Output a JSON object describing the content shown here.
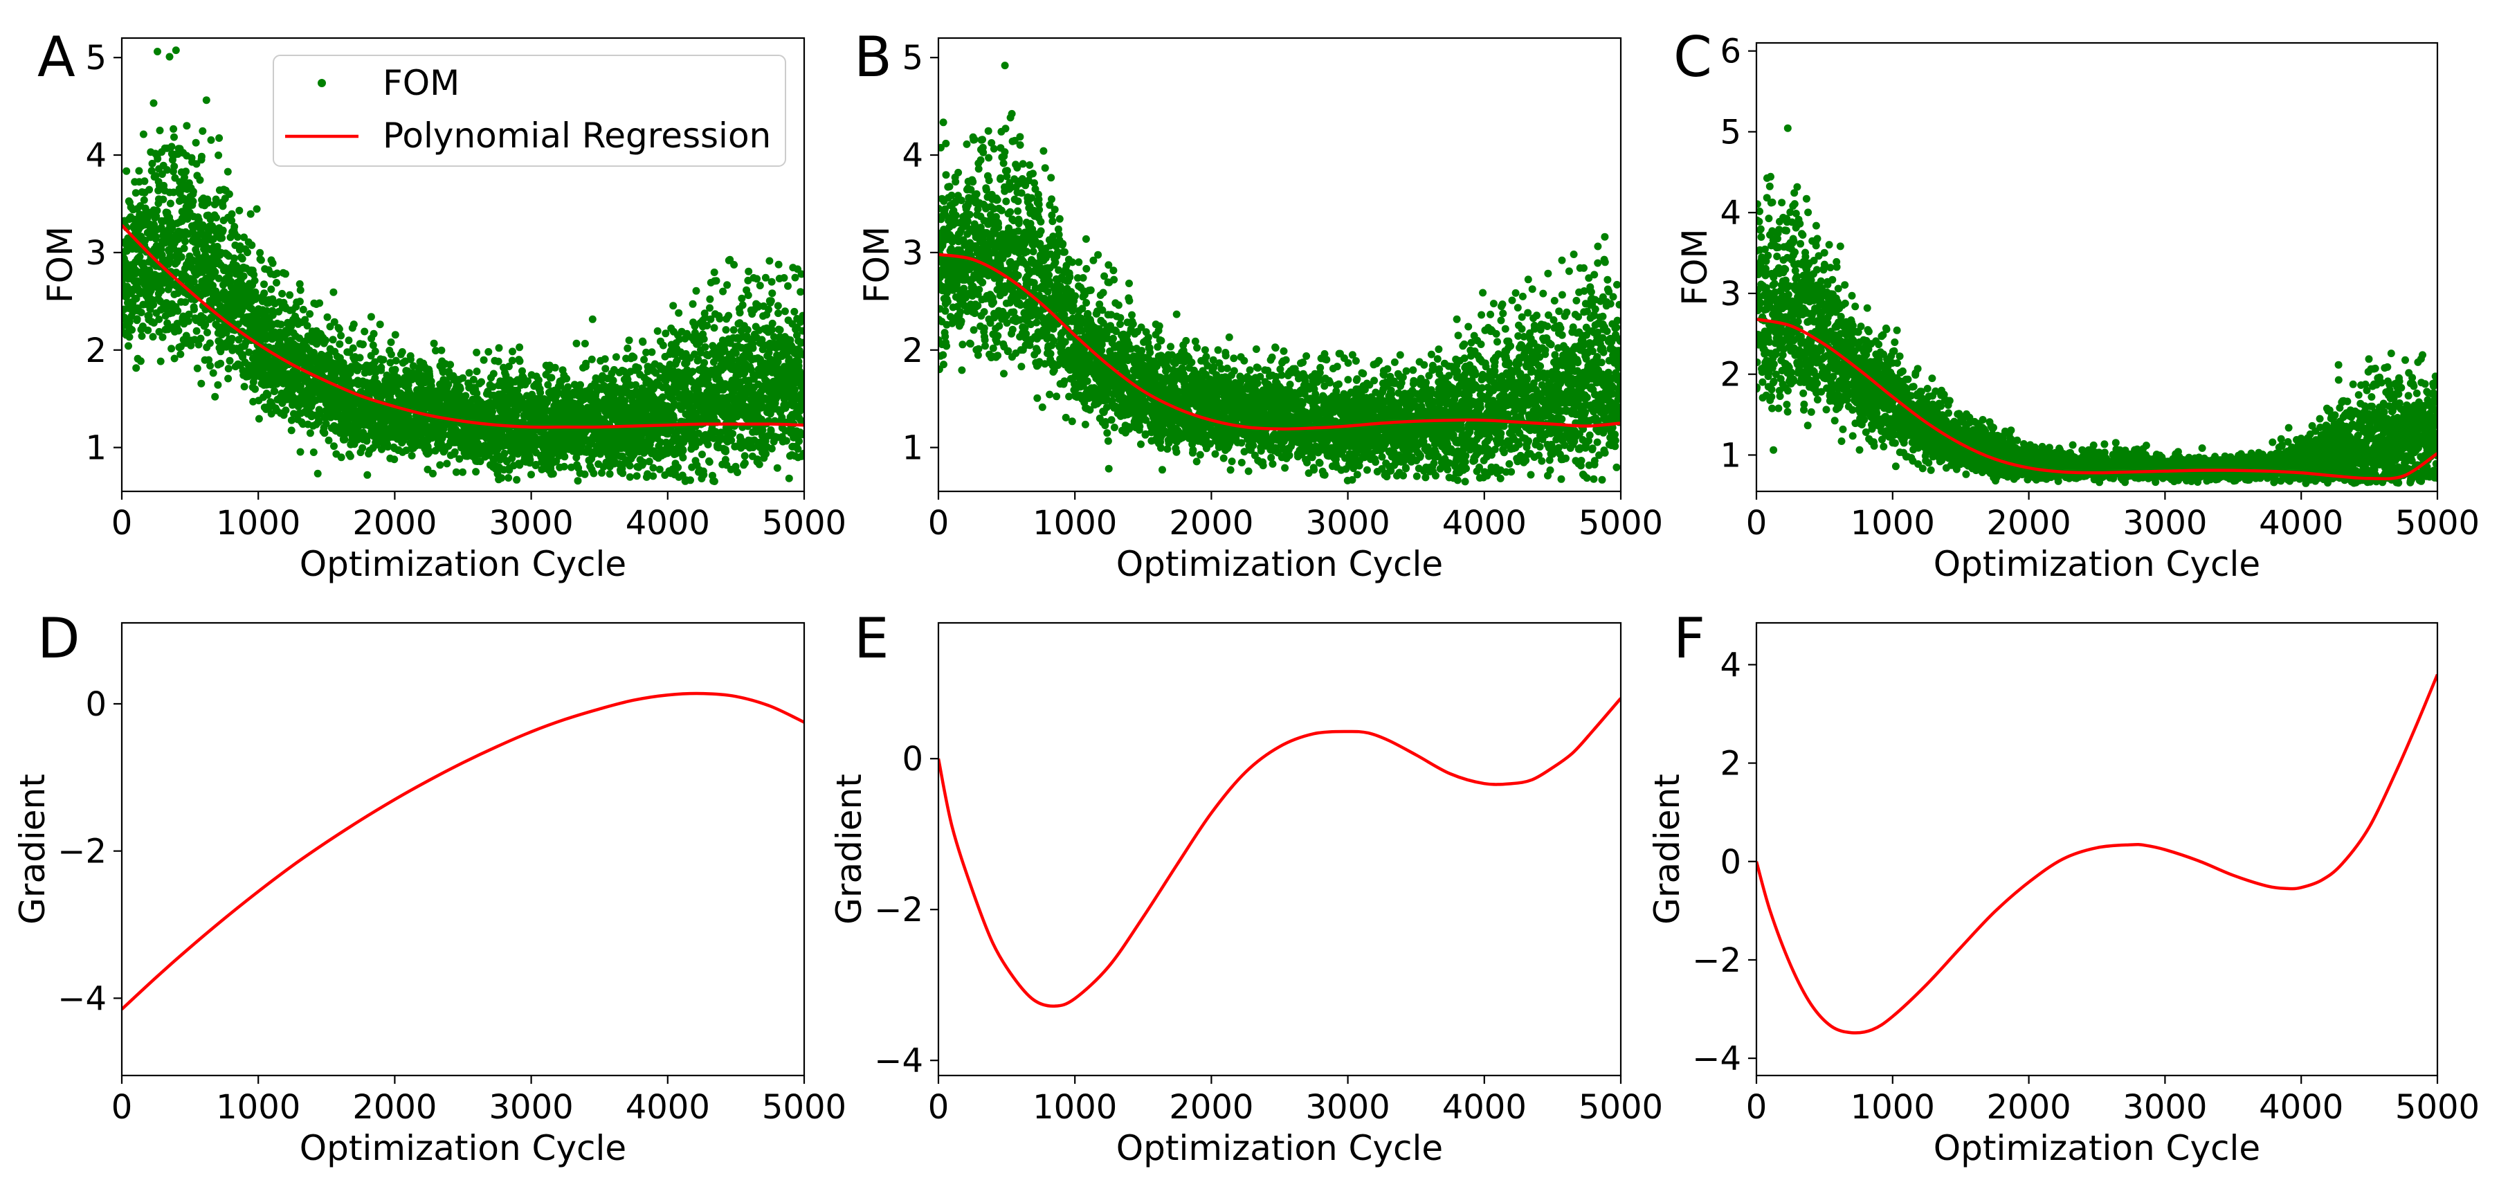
{
  "chart_data": [
    {
      "panel": "A",
      "type": "scatter",
      "xlabel": "Optimization Cycle",
      "ylabel": "FOM",
      "xlim": [
        0,
        5000
      ],
      "ylim": [
        0.55,
        5.2
      ],
      "xticks": [
        0,
        1000,
        2000,
        3000,
        4000,
        5000
      ],
      "yticks": [
        1,
        2,
        3,
        4,
        5
      ],
      "legend": {
        "location": "top-right",
        "entries": [
          "FOM",
          "Polynomial Regression"
        ]
      },
      "scatter_trend": {
        "x": [
          0,
          250,
          500,
          750,
          1000,
          1250,
          1500,
          1750,
          2000,
          2250,
          2500,
          2750,
          3000,
          3250,
          3500,
          3750,
          4000,
          4250,
          4500,
          4750,
          5000
        ],
        "y": [
          2.7,
          2.75,
          2.8,
          2.45,
          2.0,
          1.7,
          1.5,
          1.38,
          1.3,
          1.25,
          1.2,
          1.15,
          1.13,
          1.12,
          1.12,
          1.15,
          1.25,
          1.35,
          1.45,
          1.5,
          1.55
        ],
        "spread": [
          0.55,
          0.6,
          0.75,
          0.6,
          0.5,
          0.4,
          0.35,
          0.32,
          0.3,
          0.3,
          0.3,
          0.3,
          0.3,
          0.3,
          0.32,
          0.38,
          0.45,
          0.5,
          0.55,
          0.55,
          0.55
        ]
      },
      "point_count": 5000,
      "series": [
        {
          "name": "Polynomial Regression",
          "type": "line",
          "x": [
            0,
            250,
            500,
            750,
            1000,
            1250,
            1500,
            1750,
            2000,
            2250,
            2500,
            2750,
            3000,
            3250,
            3500,
            3750,
            4000,
            4250,
            4500,
            4750,
            5000
          ],
          "y": [
            3.28,
            2.92,
            2.6,
            2.31,
            2.06,
            1.85,
            1.68,
            1.53,
            1.42,
            1.33,
            1.27,
            1.23,
            1.21,
            1.21,
            1.21,
            1.22,
            1.23,
            1.24,
            1.24,
            1.24,
            1.23
          ]
        }
      ]
    },
    {
      "panel": "B",
      "type": "scatter",
      "xlabel": "Optimization Cycle",
      "ylabel": "FOM",
      "xlim": [
        0,
        5000
      ],
      "ylim": [
        0.55,
        5.2
      ],
      "xticks": [
        0,
        1000,
        2000,
        3000,
        4000,
        5000
      ],
      "yticks": [
        1,
        2,
        3,
        4,
        5
      ],
      "scatter_trend": {
        "x": [
          0,
          250,
          500,
          750,
          1000,
          1250,
          1500,
          1750,
          2000,
          2250,
          2500,
          2750,
          3000,
          3250,
          3500,
          3750,
          4000,
          4250,
          4500,
          4750,
          5000
        ],
        "y": [
          2.7,
          2.75,
          2.8,
          2.45,
          2.0,
          1.7,
          1.5,
          1.38,
          1.3,
          1.25,
          1.2,
          1.15,
          1.13,
          1.12,
          1.12,
          1.15,
          1.25,
          1.35,
          1.45,
          1.5,
          1.55
        ],
        "spread": [
          0.55,
          0.6,
          0.75,
          0.6,
          0.5,
          0.4,
          0.35,
          0.32,
          0.3,
          0.3,
          0.3,
          0.3,
          0.3,
          0.3,
          0.32,
          0.38,
          0.45,
          0.5,
          0.55,
          0.55,
          0.55
        ]
      },
      "point_count": 5000,
      "series": [
        {
          "name": "Polynomial Regression",
          "type": "line",
          "x": [
            0,
            250,
            500,
            750,
            1000,
            1250,
            1500,
            1750,
            2000,
            2250,
            2500,
            2750,
            3000,
            3250,
            3500,
            3750,
            4000,
            4250,
            4500,
            4750,
            5000
          ],
          "y": [
            2.98,
            2.93,
            2.75,
            2.48,
            2.15,
            1.84,
            1.58,
            1.4,
            1.28,
            1.21,
            1.19,
            1.2,
            1.22,
            1.25,
            1.27,
            1.28,
            1.28,
            1.26,
            1.24,
            1.22,
            1.25
          ]
        }
      ]
    },
    {
      "panel": "C",
      "type": "scatter",
      "xlabel": "Optimization Cycle",
      "ylabel": "FOM",
      "xlim": [
        0,
        5000
      ],
      "ylim": [
        0.55,
        6.1
      ],
      "xticks": [
        0,
        1000,
        2000,
        3000,
        4000,
        5000
      ],
      "yticks": [
        1,
        2,
        3,
        4,
        5,
        6
      ],
      "scatter_trend": {
        "x": [
          0,
          250,
          500,
          750,
          1000,
          1250,
          1500,
          1750,
          2000,
          2250,
          2500,
          2750,
          3000,
          3250,
          3500,
          3750,
          4000,
          4250,
          4500,
          4750,
          5000
        ],
        "y": [
          2.6,
          2.6,
          2.3,
          1.8,
          1.5,
          1.25,
          1.05,
          0.95,
          0.85,
          0.82,
          0.82,
          0.82,
          0.8,
          0.8,
          0.8,
          0.82,
          0.85,
          0.92,
          1.0,
          1.05,
          1.1
        ],
        "spread": [
          0.75,
          0.8,
          0.6,
          0.45,
          0.35,
          0.25,
          0.2,
          0.18,
          0.12,
          0.1,
          0.1,
          0.1,
          0.08,
          0.08,
          0.08,
          0.1,
          0.15,
          0.35,
          0.45,
          0.45,
          0.45
        ]
      },
      "point_count": 5000,
      "series": [
        {
          "name": "Polynomial Regression",
          "type": "line",
          "x": [
            0,
            250,
            500,
            750,
            1000,
            1250,
            1500,
            1750,
            2000,
            2250,
            2500,
            2750,
            3000,
            3250,
            3500,
            3750,
            4000,
            4250,
            4500,
            4750,
            5000
          ],
          "y": [
            2.68,
            2.6,
            2.37,
            2.06,
            1.72,
            1.4,
            1.14,
            0.95,
            0.84,
            0.79,
            0.78,
            0.79,
            0.8,
            0.81,
            0.81,
            0.8,
            0.78,
            0.74,
            0.71,
            0.74,
            1.02
          ]
        }
      ]
    },
    {
      "panel": "D",
      "type": "line",
      "xlabel": "Optimization Cycle",
      "ylabel": "Gradient",
      "xlim": [
        0,
        5000
      ],
      "ylim": [
        -5.05,
        1.1
      ],
      "xticks": [
        0,
        1000,
        2000,
        3000,
        4000,
        5000
      ],
      "yticks": [
        -4,
        -2,
        0
      ],
      "yticklabels": [
        "−4",
        "−2",
        "0"
      ],
      "series": [
        {
          "type": "line",
          "x": [
            0,
            250,
            500,
            750,
            1000,
            1250,
            1500,
            1750,
            2000,
            2250,
            2500,
            2750,
            3000,
            3250,
            3500,
            3750,
            4000,
            4250,
            4500,
            4750,
            5000
          ],
          "y": [
            -4.15,
            -3.72,
            -3.31,
            -2.92,
            -2.55,
            -2.2,
            -1.88,
            -1.58,
            -1.3,
            -1.04,
            -0.8,
            -0.58,
            -0.38,
            -0.21,
            -0.07,
            0.05,
            0.12,
            0.14,
            0.1,
            -0.03,
            -0.25
          ]
        }
      ]
    },
    {
      "panel": "E",
      "type": "line",
      "xlabel": "Optimization Cycle",
      "ylabel": "Gradient",
      "xlim": [
        0,
        5000
      ],
      "ylim": [
        -4.2,
        1.8
      ],
      "xticks": [
        0,
        1000,
        2000,
        3000,
        4000,
        5000
      ],
      "yticks": [
        -4,
        -2,
        0
      ],
      "yticklabels": [
        "−4",
        "−2",
        "0"
      ],
      "series": [
        {
          "type": "line",
          "x": [
            0,
            100,
            250,
            400,
            550,
            700,
            850,
            1000,
            1250,
            1500,
            1750,
            2000,
            2250,
            2500,
            2750,
            3000,
            3150,
            3300,
            3500,
            3750,
            4000,
            4200,
            4350,
            4500,
            4650,
            4800,
            5000
          ],
          "y": [
            0.0,
            -0.9,
            -1.75,
            -2.45,
            -2.9,
            -3.2,
            -3.28,
            -3.18,
            -2.75,
            -2.1,
            -1.4,
            -0.72,
            -0.18,
            0.16,
            0.33,
            0.36,
            0.34,
            0.24,
            0.05,
            -0.2,
            -0.33,
            -0.33,
            -0.28,
            -0.12,
            0.08,
            0.38,
            0.8
          ]
        }
      ]
    },
    {
      "panel": "F",
      "type": "line",
      "xlabel": "Optimization Cycle",
      "ylabel": "Gradient",
      "xlim": [
        0,
        5000
      ],
      "ylim": [
        -4.35,
        4.85
      ],
      "xticks": [
        0,
        1000,
        2000,
        3000,
        4000,
        5000
      ],
      "yticks": [
        -4,
        -2,
        0,
        2,
        4
      ],
      "yticklabels": [
        "−4",
        "−2",
        "0",
        "2",
        "4"
      ],
      "series": [
        {
          "type": "line",
          "x": [
            0,
            100,
            250,
            400,
            550,
            700,
            850,
            1000,
            1250,
            1500,
            1750,
            2000,
            2250,
            2500,
            2750,
            2850,
            3000,
            3250,
            3500,
            3750,
            3900,
            4000,
            4150,
            4300,
            4500,
            4700,
            4850,
            5000
          ],
          "y": [
            0.0,
            -1.0,
            -2.1,
            -2.9,
            -3.35,
            -3.48,
            -3.42,
            -3.15,
            -2.5,
            -1.75,
            -1.02,
            -0.42,
            0.05,
            0.28,
            0.34,
            0.33,
            0.24,
            0.01,
            -0.28,
            -0.5,
            -0.55,
            -0.53,
            -0.38,
            -0.05,
            0.7,
            1.85,
            2.8,
            3.8
          ]
        }
      ]
    }
  ],
  "legend_labels": {
    "fom": "FOM",
    "regression": "Polynomial Regression"
  },
  "colors": {
    "scatter": "#008000",
    "line": "#ff0000"
  }
}
